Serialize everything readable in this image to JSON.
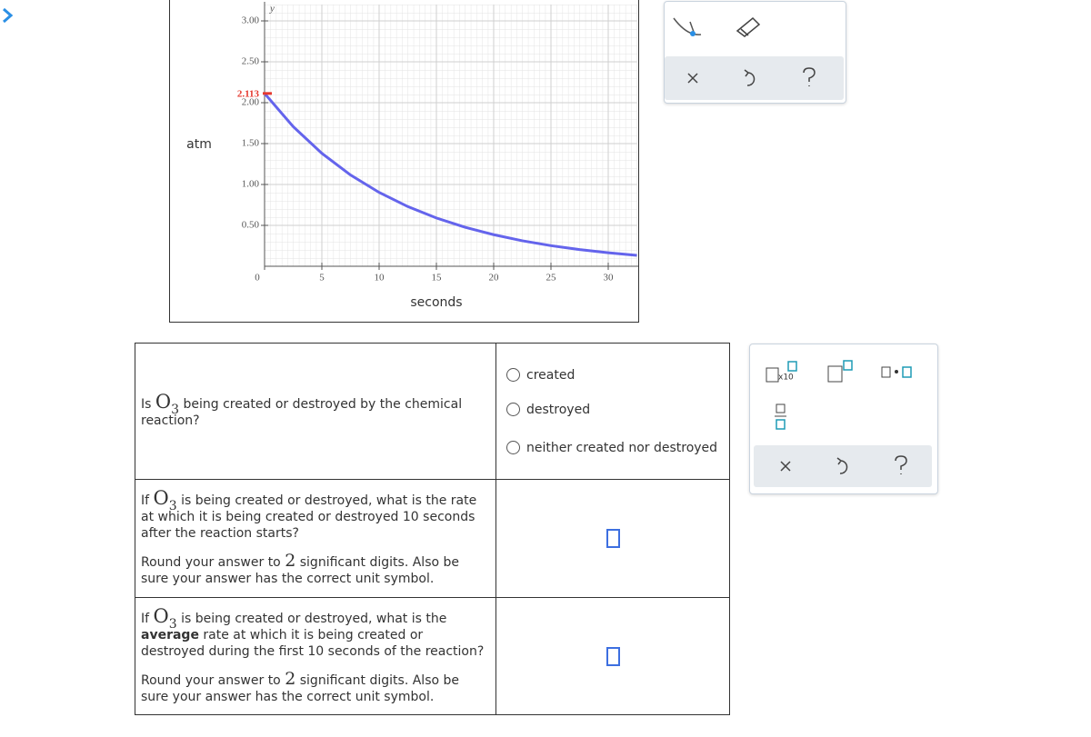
{
  "chart_data": {
    "type": "line",
    "axis_letter": "y",
    "ylabel": "atm",
    "xlabel": "seconds",
    "x": [
      0,
      2.5,
      5,
      7.5,
      10,
      12.5,
      15,
      17.5,
      20,
      22.5,
      25,
      27.5,
      30,
      32.5
    ],
    "values": [
      2.113,
      1.707,
      1.381,
      1.116,
      0.903,
      0.73,
      0.59,
      0.477,
      0.386,
      0.312,
      0.252,
      0.204,
      0.165,
      0.133
    ],
    "color": "#6464ec",
    "xlim": [
      0,
      32.5
    ],
    "ylim": [
      0,
      3.2
    ],
    "xticks": [
      0,
      5,
      10,
      15,
      20,
      25,
      30
    ],
    "yticks": [
      {
        "value": 0.5,
        "label": "0.50"
      },
      {
        "value": 1,
        "label": "1.00"
      },
      {
        "value": 1.5,
        "label": "1.50"
      },
      {
        "value": 2,
        "label": "2.00"
      },
      {
        "value": 2.5,
        "label": "2.50"
      },
      {
        "value": 3,
        "label": "3.00"
      }
    ],
    "annotation": {
      "value": 2.113,
      "label": "2.113",
      "color": "#e5392f"
    },
    "grid": true
  },
  "questions": [
    {
      "prefix": "Is",
      "formula": "O",
      "subscript": "3",
      "text": "being created or destroyed by the chemical reaction?",
      "options": [
        "created",
        "destroyed",
        "neither created nor destroyed"
      ]
    },
    {
      "prefix": "If",
      "formula": "O",
      "subscript": "3",
      "text": "is being created or destroyed, what is the rate at which it is being created or destroyed 10 seconds after the reaction starts?",
      "note_before": "Round your answer to",
      "note_number": "2",
      "note_after": "significant digits. Also be sure your answer has the correct unit symbol."
    },
    {
      "prefix": "If",
      "formula": "O",
      "subscript": "3",
      "text": "is being created or destroyed, what is the",
      "bold": "average",
      "text_after": "rate at which it is being created or destroyed during the first 10 seconds of the reaction?",
      "note_before": "Round your answer to",
      "note_number": "2",
      "note_after": "significant digits. Also be sure your answer has the correct unit symbol."
    }
  ],
  "unit_palette": {
    "exponent_label": "x10"
  }
}
